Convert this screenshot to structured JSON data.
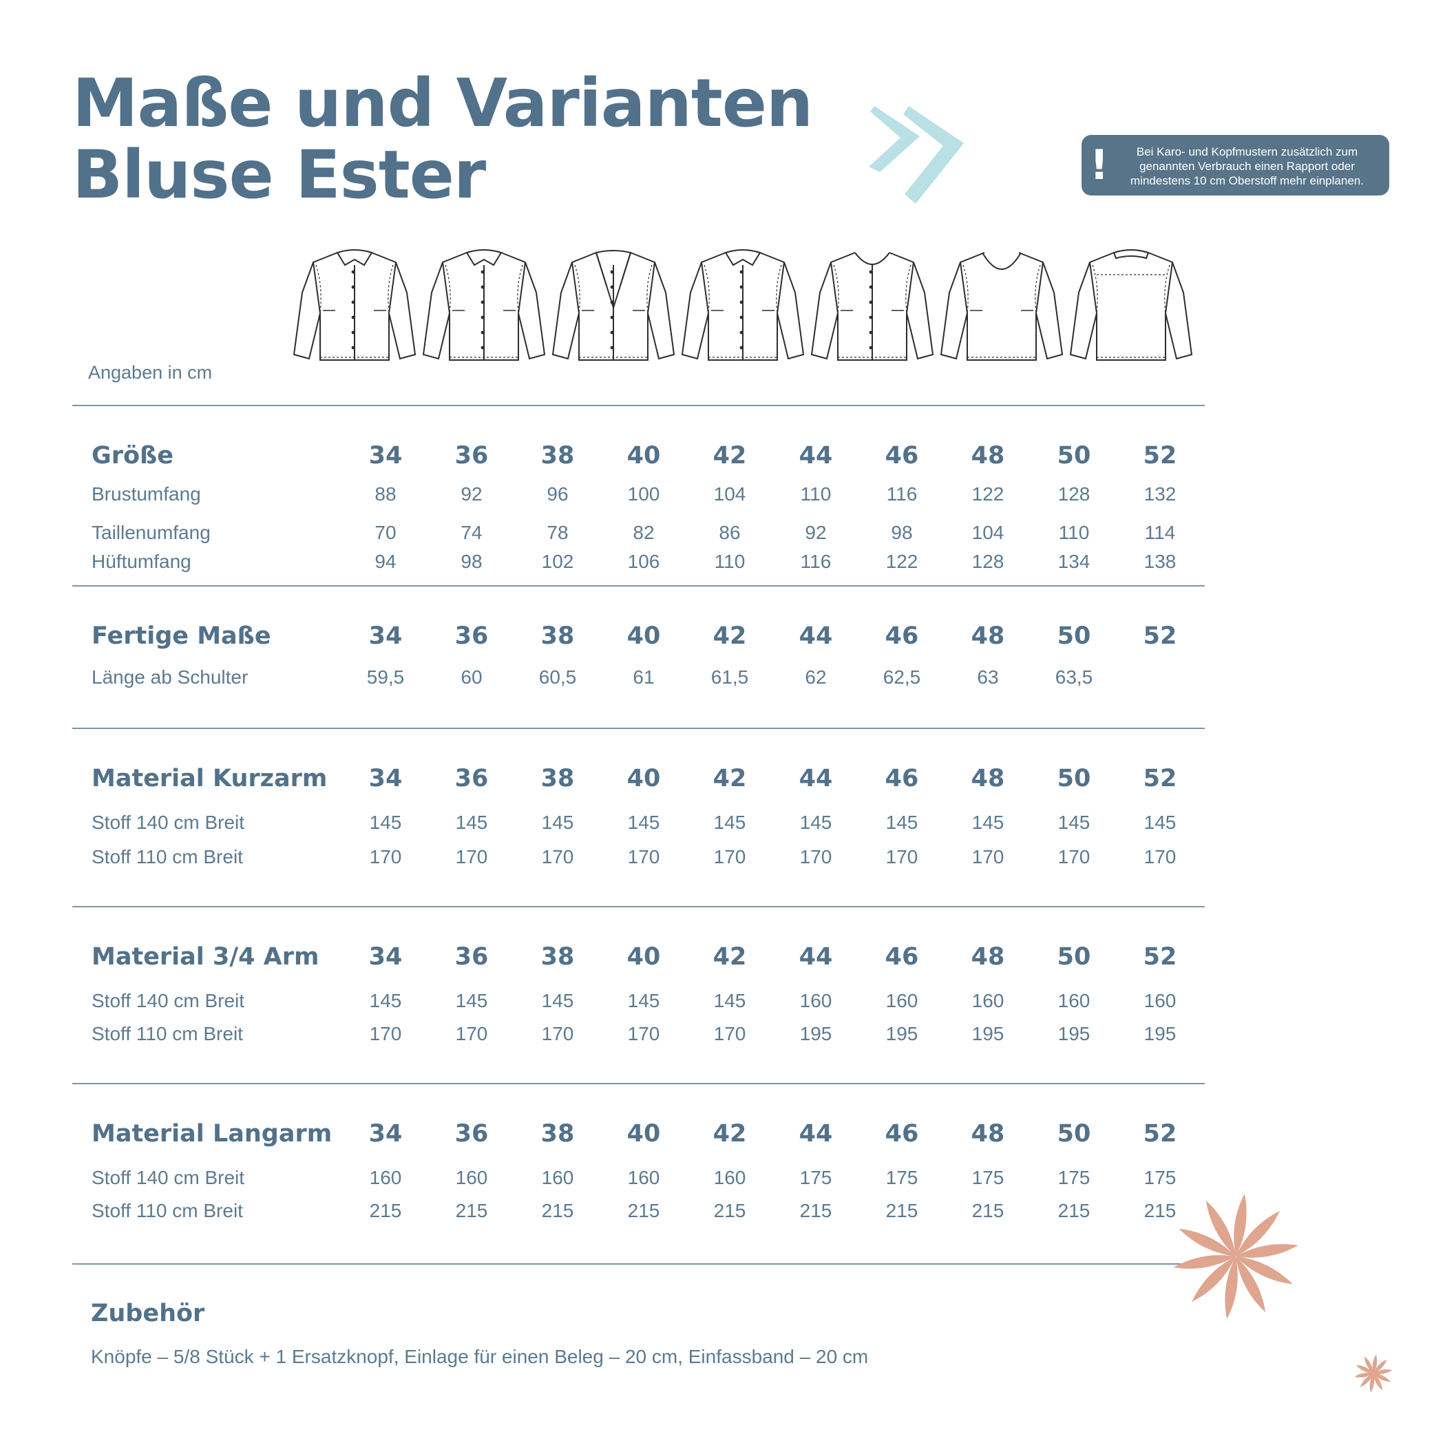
{
  "title": {
    "line1": "Maße und Varianten",
    "line2": "Bluse Ester"
  },
  "notice": {
    "icon": "exclamation-icon",
    "text": "Bei Karo- und Kopfmustern zusätzlich zum genannten Verbrauch einen Rapport oder mindestens 10 cm Oberstoff mehr einplanen."
  },
  "unit_label": "Angaben in cm",
  "sizes": [
    "34",
    "36",
    "38",
    "40",
    "42",
    "44",
    "46",
    "48",
    "50",
    "52"
  ],
  "sections": [
    {
      "title": "Größe",
      "rows": [
        {
          "label": "Brustumfang",
          "values": [
            "88",
            "92",
            "96",
            "100",
            "104",
            "110",
            "116",
            "122",
            "128",
            "132"
          ]
        },
        {
          "label": "Taillenumfang",
          "values": [
            "70",
            "74",
            "78",
            "82",
            "86",
            "92",
            "98",
            "104",
            "110",
            "114"
          ]
        },
        {
          "label": "Hüftumfang",
          "values": [
            "94",
            "98",
            "102",
            "106",
            "110",
            "116",
            "122",
            "128",
            "134",
            "138"
          ]
        }
      ]
    },
    {
      "title": "Fertige Maße",
      "rows": [
        {
          "label": "Länge ab Schulter",
          "values": [
            "59,5",
            "60",
            "60,5",
            "61",
            "61,5",
            "62",
            "62,5",
            "63",
            "63,5",
            ""
          ]
        }
      ]
    },
    {
      "title": "Material Kurzarm",
      "rows": [
        {
          "label": "Stoff 140 cm Breit",
          "values": [
            "145",
            "145",
            "145",
            "145",
            "145",
            "145",
            "145",
            "145",
            "145",
            "145"
          ]
        },
        {
          "label": "Stoff 110 cm Breit",
          "values": [
            "170",
            "170",
            "170",
            "170",
            "170",
            "170",
            "170",
            "170",
            "170",
            "170"
          ]
        }
      ]
    },
    {
      "title": "Material 3/4 Arm",
      "rows": [
        {
          "label": "Stoff 140 cm Breit",
          "values": [
            "145",
            "145",
            "145",
            "145",
            "145",
            "160",
            "160",
            "160",
            "160",
            "160"
          ]
        },
        {
          "label": "Stoff 110 cm Breit",
          "values": [
            "170",
            "170",
            "170",
            "170",
            "170",
            "195",
            "195",
            "195",
            "195",
            "195"
          ]
        }
      ]
    },
    {
      "title": "Material Langarm",
      "rows": [
        {
          "label": "Stoff 140 cm Breit",
          "values": [
            "160",
            "160",
            "160",
            "160",
            "160",
            "175",
            "175",
            "175",
            "175",
            "175"
          ]
        },
        {
          "label": "Stoff 110 cm Breit",
          "values": [
            "215",
            "215",
            "215",
            "215",
            "215",
            "215",
            "215",
            "215",
            "215",
            "215"
          ]
        }
      ]
    }
  ],
  "accessories": {
    "title": "Zubehör",
    "text": "Knöpfe – 5/8 Stück + 1 Ersatzknopf, Einlage für einen Beleg – 20 cm, Einfassband – 20 cm"
  },
  "garments": [
    {
      "name": "blouse-classic-collar-icon",
      "neck": "collar"
    },
    {
      "name": "blouse-round-collar-icon",
      "neck": "round-collar"
    },
    {
      "name": "blouse-lapel-collar-icon",
      "neck": "lapel"
    },
    {
      "name": "blouse-stand-collar-icon",
      "neck": "stand"
    },
    {
      "name": "blouse-round-neck-buttoned-icon",
      "neck": "round"
    },
    {
      "name": "blouse-v-neck-icon",
      "neck": "scoop"
    },
    {
      "name": "blouse-back-view-icon",
      "neck": "back"
    }
  ],
  "colors": {
    "text": "#52718a",
    "rule": "#7f96a6",
    "notice_bg": "#577489",
    "chevron": "#b9e0e4",
    "flower": "#dfa58e"
  }
}
